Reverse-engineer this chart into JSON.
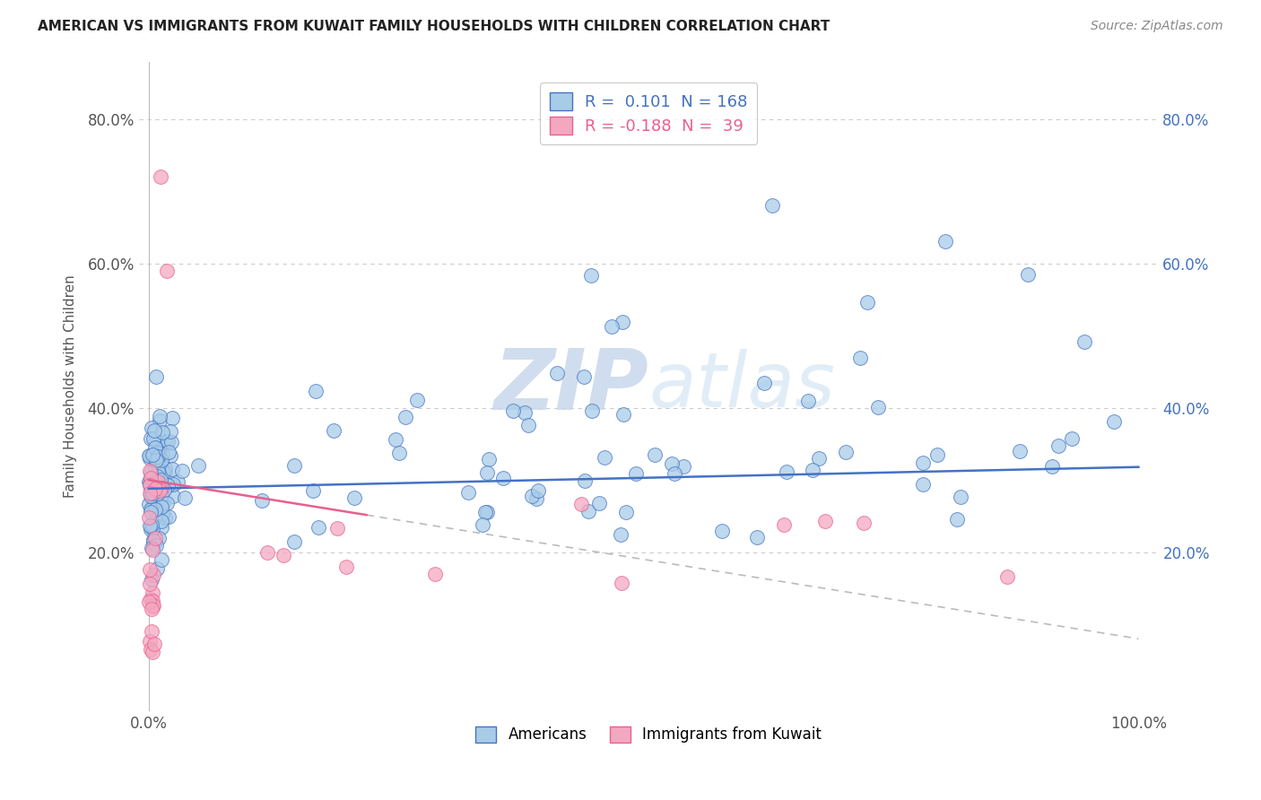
{
  "title": "AMERICAN VS IMMIGRANTS FROM KUWAIT FAMILY HOUSEHOLDS WITH CHILDREN CORRELATION CHART",
  "source": "Source: ZipAtlas.com",
  "ylabel": "Family Households with Children",
  "r_american": 0.101,
  "n_american": 168,
  "r_kuwait": -0.188,
  "n_kuwait": 39,
  "american_color": "#a8cce8",
  "kuwait_color": "#f4a8c0",
  "american_line_color": "#4472c4",
  "kuwait_line_color": "#e86090",
  "background_color": "#ffffff",
  "grid_color": "#cccccc",
  "watermark_zip": "ZIP",
  "watermark_atlas": "atlas",
  "xlim_min": -0.01,
  "xlim_max": 1.02,
  "ylim_min": -0.02,
  "ylim_max": 0.88,
  "seed": 17
}
